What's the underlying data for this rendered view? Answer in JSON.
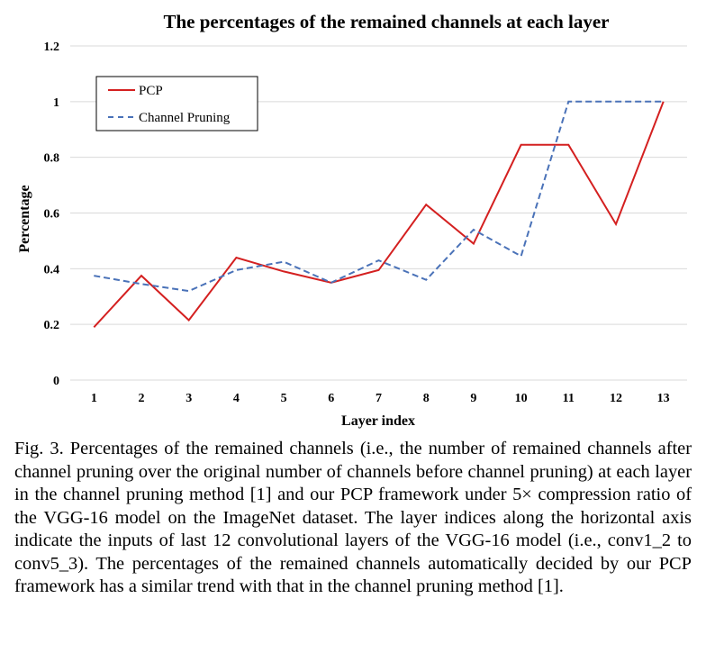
{
  "chart_data": {
    "type": "line",
    "title": "The percentages of the remained channels at each layer",
    "xlabel": "Layer index",
    "ylabel": "Percentage",
    "categories": [
      "1",
      "2",
      "3",
      "4",
      "5",
      "6",
      "7",
      "8",
      "9",
      "10",
      "11",
      "12",
      "13"
    ],
    "yticks": [
      "0",
      "0.2",
      "0.4",
      "0.6",
      "0.8",
      "1",
      "1.2"
    ],
    "ylim": [
      0,
      1.2
    ],
    "grid": true,
    "legend_position": "top-left",
    "series": [
      {
        "name": "PCP",
        "color": "#d42020",
        "style": "solid",
        "values": [
          0.19,
          0.375,
          0.215,
          0.44,
          0.39,
          0.35,
          0.395,
          0.63,
          0.49,
          0.845,
          0.845,
          0.56,
          1.0
        ]
      },
      {
        "name": "Channel Pruning",
        "color": "#4a72b8",
        "style": "dashed",
        "values": [
          0.375,
          0.345,
          0.32,
          0.395,
          0.425,
          0.35,
          0.43,
          0.36,
          0.54,
          0.445,
          1.0,
          1.0,
          1.0
        ]
      }
    ]
  },
  "caption": "Fig. 3.  Percentages of the remained channels (i.e., the number of remained channels after channel pruning over the original number of channels before channel pruning) at each layer in the channel pruning method [1] and our PCP framework under 5× compression ratio of the VGG-16 model on the ImageNet dataset. The layer indices along the horizontal axis indicate the inputs of last 12 convolutional layers of the VGG-16 model (i.e., conv1_2 to conv5_3). The percentages of the remained channels automatically decided by our PCP framework has a similar trend with that in the channel pruning method [1]."
}
